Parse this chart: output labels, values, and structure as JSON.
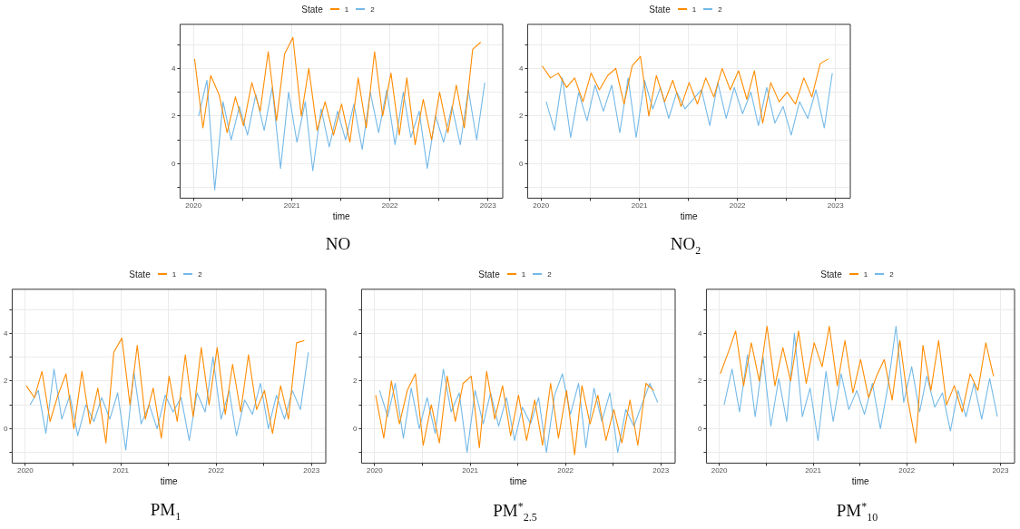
{
  "chart_data": [
    {
      "type": "line",
      "title": "NO",
      "xlabel": "time",
      "legend_title": "State",
      "legend": "top",
      "grid": true,
      "xlim": [
        "2019-11-12",
        "2023-02-25"
      ],
      "xticks": [
        {
          "value": "2020-01-01",
          "label": "2020"
        },
        {
          "value": "2020-07-01",
          "label": null
        },
        {
          "value": "2021-01-01",
          "label": "2021"
        },
        {
          "value": "2021-07-01",
          "label": null
        },
        {
          "value": "2022-01-01",
          "label": "2022"
        },
        {
          "value": "2022-07-01",
          "label": null
        },
        {
          "value": "2023-01-01",
          "label": "2023"
        }
      ],
      "ylim": [
        -1.45,
        5.85
      ],
      "yticks": [
        {
          "value": -1,
          "label": null
        },
        0,
        {
          "value": 1,
          "label": null
        },
        2,
        {
          "value": 3,
          "label": null
        },
        4,
        {
          "value": 5,
          "label": null
        }
      ],
      "series": [
        {
          "name": "1",
          "color": "#ff8c00",
          "x": [
            "2020-01-05",
            "2020-02-05",
            "2020-03-05",
            "2020-04-05",
            "2020-05-05",
            "2020-06-05",
            "2020-07-05",
            "2020-08-05",
            "2020-09-05",
            "2020-10-05",
            "2020-11-05",
            "2020-12-05",
            "2021-01-05",
            "2021-02-05",
            "2021-03-05",
            "2021-04-05",
            "2021-05-05",
            "2021-06-05",
            "2021-07-05",
            "2021-08-05",
            "2021-09-05",
            "2021-10-05",
            "2021-11-05",
            "2021-12-05",
            "2022-01-05",
            "2022-02-05",
            "2022-03-05",
            "2022-04-05",
            "2022-05-05",
            "2022-06-05",
            "2022-07-05",
            "2022-08-05",
            "2022-09-05",
            "2022-10-05",
            "2022-11-05",
            "2022-12-05"
          ],
          "values": [
            4.4,
            1.5,
            3.7,
            2.9,
            1.3,
            2.8,
            1.6,
            3.4,
            2.2,
            4.7,
            1.8,
            4.6,
            5.3,
            2.0,
            4.0,
            1.4,
            2.6,
            1.2,
            2.5,
            0.9,
            3.6,
            1.5,
            4.7,
            2.0,
            3.8,
            1.2,
            3.6,
            0.8,
            2.7,
            1.0,
            3.0,
            1.3,
            3.3,
            1.5,
            4.8,
            5.1
          ]
        },
        {
          "name": "2",
          "color": "#74b9e8",
          "x": [
            "2020-01-20",
            "2020-02-20",
            "2020-03-20",
            "2020-04-20",
            "2020-05-20",
            "2020-06-20",
            "2020-07-20",
            "2020-08-20",
            "2020-09-20",
            "2020-10-20",
            "2020-11-20",
            "2020-12-20",
            "2021-01-20",
            "2021-02-20",
            "2021-03-20",
            "2021-04-20",
            "2021-05-20",
            "2021-06-20",
            "2021-07-20",
            "2021-08-20",
            "2021-09-20",
            "2021-10-20",
            "2021-11-20",
            "2021-12-20",
            "2022-01-20",
            "2022-02-20",
            "2022-03-20",
            "2022-04-20",
            "2022-05-20",
            "2022-06-20",
            "2022-07-20",
            "2022-08-20",
            "2022-09-20",
            "2022-10-20",
            "2022-11-20",
            "2022-12-20"
          ],
          "values": [
            2.0,
            3.5,
            -1.1,
            2.6,
            1.0,
            2.4,
            1.2,
            2.9,
            1.4,
            3.2,
            -0.2,
            3.0,
            0.9,
            2.6,
            -0.3,
            2.3,
            0.7,
            2.2,
            1.0,
            2.5,
            0.6,
            3.0,
            1.3,
            3.1,
            0.8,
            3.0,
            1.1,
            2.2,
            -0.2,
            2.0,
            0.9,
            2.4,
            0.8,
            3.1,
            1.0,
            3.4
          ]
        }
      ]
    },
    {
      "type": "line",
      "title": "NO$_{2}$",
      "xlabel": "time",
      "legend_title": "State",
      "legend": "top",
      "grid": true,
      "xlim": [
        "2019-11-12",
        "2023-02-25"
      ],
      "xticks": [
        {
          "value": "2020-01-01",
          "label": "2020"
        },
        {
          "value": "2020-07-01",
          "label": null
        },
        {
          "value": "2021-01-01",
          "label": "2021"
        },
        {
          "value": "2021-07-01",
          "label": null
        },
        {
          "value": "2022-01-01",
          "label": "2022"
        },
        {
          "value": "2022-07-01",
          "label": null
        },
        {
          "value": "2023-01-01",
          "label": "2023"
        }
      ],
      "ylim": [
        -1.45,
        5.85
      ],
      "yticks": [
        {
          "value": -1,
          "label": null
        },
        0,
        {
          "value": 1,
          "label": null
        },
        2,
        {
          "value": 3,
          "label": null
        },
        4,
        {
          "value": 5,
          "label": null
        }
      ],
      "series": [
        {
          "name": "1",
          "color": "#ff8c00",
          "x": [
            "2020-01-05",
            "2020-02-05",
            "2020-03-05",
            "2020-04-05",
            "2020-05-05",
            "2020-06-05",
            "2020-07-05",
            "2020-08-05",
            "2020-09-05",
            "2020-10-05",
            "2020-11-05",
            "2020-12-05",
            "2021-01-05",
            "2021-02-05",
            "2021-03-05",
            "2021-04-05",
            "2021-05-05",
            "2021-06-05",
            "2021-07-05",
            "2021-08-05",
            "2021-09-05",
            "2021-10-05",
            "2021-11-05",
            "2021-12-05",
            "2022-01-05",
            "2022-02-05",
            "2022-03-05",
            "2022-04-05",
            "2022-05-05",
            "2022-06-05",
            "2022-07-05",
            "2022-08-05",
            "2022-09-05",
            "2022-10-05",
            "2022-11-05",
            "2022-12-05"
          ],
          "values": [
            4.1,
            3.6,
            3.8,
            3.2,
            3.6,
            2.6,
            3.8,
            3.1,
            3.7,
            4.0,
            2.5,
            4.1,
            4.5,
            2.0,
            3.7,
            2.6,
            3.5,
            2.4,
            3.4,
            2.5,
            3.6,
            2.8,
            4.0,
            3.1,
            3.9,
            2.7,
            3.9,
            1.7,
            3.4,
            2.6,
            3.0,
            2.5,
            3.6,
            2.8,
            4.2,
            4.4
          ]
        },
        {
          "name": "2",
          "color": "#74b9e8",
          "x": [
            "2020-01-20",
            "2020-02-20",
            "2020-03-20",
            "2020-04-20",
            "2020-05-20",
            "2020-06-20",
            "2020-07-20",
            "2020-08-20",
            "2020-09-20",
            "2020-10-20",
            "2020-11-20",
            "2020-12-20",
            "2021-01-20",
            "2021-02-20",
            "2021-03-20",
            "2021-04-20",
            "2021-05-20",
            "2021-06-20",
            "2021-07-20",
            "2021-08-20",
            "2021-09-20",
            "2021-10-20",
            "2021-11-20",
            "2021-12-20",
            "2022-01-20",
            "2022-02-20",
            "2022-03-20",
            "2022-04-20",
            "2022-05-20",
            "2022-06-20",
            "2022-07-20",
            "2022-08-20",
            "2022-09-20",
            "2022-10-20",
            "2022-11-20",
            "2022-12-20"
          ],
          "values": [
            2.6,
            1.4,
            3.6,
            1.1,
            3.0,
            1.8,
            3.3,
            2.2,
            3.3,
            1.3,
            3.6,
            1.1,
            3.5,
            2.3,
            3.2,
            1.9,
            3.0,
            2.3,
            2.7,
            3.1,
            1.6,
            3.4,
            1.9,
            3.2,
            2.1,
            3.0,
            1.6,
            3.2,
            1.7,
            2.4,
            1.2,
            2.6,
            1.9,
            3.1,
            1.5,
            3.8
          ]
        }
      ]
    },
    {
      "type": "line",
      "title": "PM$_{1}$",
      "xlabel": "time",
      "legend_title": "State",
      "legend": "top",
      "grid": true,
      "xlim": [
        "2019-11-12",
        "2023-02-25"
      ],
      "xticks": [
        {
          "value": "2020-01-01",
          "label": "2020"
        },
        {
          "value": "2020-07-01",
          "label": null
        },
        {
          "value": "2021-01-01",
          "label": "2021"
        },
        {
          "value": "2021-07-01",
          "label": null
        },
        {
          "value": "2022-01-01",
          "label": "2022"
        },
        {
          "value": "2022-07-01",
          "label": null
        },
        {
          "value": "2023-01-01",
          "label": "2023"
        }
      ],
      "ylim": [
        -1.45,
        5.85
      ],
      "yticks": [
        {
          "value": -1,
          "label": null
        },
        0,
        {
          "value": 1,
          "label": null
        },
        2,
        {
          "value": 3,
          "label": null
        },
        4,
        {
          "value": 5,
          "label": null
        }
      ],
      "series": [
        {
          "name": "1",
          "color": "#ff8c00",
          "x": [
            "2020-01-05",
            "2020-02-05",
            "2020-03-05",
            "2020-04-05",
            "2020-05-05",
            "2020-06-05",
            "2020-07-05",
            "2020-08-05",
            "2020-09-05",
            "2020-10-05",
            "2020-11-05",
            "2020-12-05",
            "2021-01-05",
            "2021-02-05",
            "2021-03-05",
            "2021-04-05",
            "2021-05-05",
            "2021-06-05",
            "2021-07-05",
            "2021-08-05",
            "2021-09-05",
            "2021-10-05",
            "2021-11-05",
            "2021-12-05",
            "2022-01-05",
            "2022-02-05",
            "2022-03-05",
            "2022-04-05",
            "2022-05-05",
            "2022-06-05",
            "2022-07-05",
            "2022-08-05",
            "2022-09-05",
            "2022-10-05",
            "2022-11-05",
            "2022-12-05"
          ],
          "values": [
            1.8,
            1.3,
            2.4,
            0.3,
            1.4,
            2.3,
            0.0,
            2.4,
            0.2,
            1.7,
            -0.6,
            3.2,
            3.8,
            1.0,
            3.5,
            0.4,
            1.7,
            -0.4,
            2.2,
            0.3,
            3.1,
            0.5,
            3.4,
            1.0,
            3.4,
            0.6,
            2.7,
            0.7,
            3.1,
            0.8,
            1.6,
            -0.2,
            1.8,
            0.4,
            3.6,
            3.7
          ]
        },
        {
          "name": "2",
          "color": "#74b9e8",
          "x": [
            "2020-01-20",
            "2020-02-20",
            "2020-03-20",
            "2020-04-20",
            "2020-05-20",
            "2020-06-20",
            "2020-07-20",
            "2020-08-20",
            "2020-09-20",
            "2020-10-20",
            "2020-11-20",
            "2020-12-20",
            "2021-01-20",
            "2021-02-20",
            "2021-03-20",
            "2021-04-20",
            "2021-05-20",
            "2021-06-20",
            "2021-07-20",
            "2021-08-20",
            "2021-09-20",
            "2021-10-20",
            "2021-11-20",
            "2021-12-20",
            "2022-01-20",
            "2022-02-20",
            "2022-03-20",
            "2022-04-20",
            "2022-05-20",
            "2022-06-20",
            "2022-07-20",
            "2022-08-20",
            "2022-09-20",
            "2022-10-20",
            "2022-11-20",
            "2022-12-20"
          ],
          "values": [
            1.0,
            1.6,
            -0.2,
            2.5,
            0.4,
            1.4,
            -0.3,
            1.0,
            0.3,
            1.3,
            0.4,
            1.5,
            -0.9,
            2.4,
            0.2,
            1.0,
            0.0,
            1.4,
            0.7,
            1.3,
            -0.5,
            1.5,
            0.7,
            3.0,
            0.4,
            1.6,
            -0.3,
            1.2,
            0.6,
            1.9,
            0.0,
            1.4,
            0.4,
            1.6,
            0.8,
            3.2
          ]
        }
      ]
    },
    {
      "type": "line",
      "title": "PM$^{*}$$_{2.5}$",
      "xlabel": "time",
      "legend_title": "State",
      "legend": "top",
      "grid": true,
      "xlim": [
        "2019-11-12",
        "2023-02-25"
      ],
      "xticks": [
        {
          "value": "2020-01-01",
          "label": "2020"
        },
        {
          "value": "2020-07-01",
          "label": null
        },
        {
          "value": "2021-01-01",
          "label": "2021"
        },
        {
          "value": "2021-07-01",
          "label": null
        },
        {
          "value": "2022-01-01",
          "label": "2022"
        },
        {
          "value": "2022-07-01",
          "label": null
        },
        {
          "value": "2023-01-01",
          "label": "2023"
        }
      ],
      "ylim": [
        -1.45,
        5.85
      ],
      "yticks": [
        {
          "value": -1,
          "label": null
        },
        0,
        {
          "value": 1,
          "label": null
        },
        2,
        {
          "value": 3,
          "label": null
        },
        4,
        {
          "value": 5,
          "label": null
        }
      ],
      "series": [
        {
          "name": "1",
          "color": "#ff8c00",
          "x": [
            "2020-01-05",
            "2020-02-05",
            "2020-03-05",
            "2020-04-05",
            "2020-05-05",
            "2020-06-05",
            "2020-07-05",
            "2020-08-05",
            "2020-09-05",
            "2020-10-05",
            "2020-11-05",
            "2020-12-05",
            "2021-01-05",
            "2021-02-05",
            "2021-03-05",
            "2021-04-05",
            "2021-05-05",
            "2021-06-05",
            "2021-07-05",
            "2021-08-05",
            "2021-09-05",
            "2021-10-05",
            "2021-11-05",
            "2021-12-05",
            "2022-01-05",
            "2022-02-05",
            "2022-03-05",
            "2022-04-05",
            "2022-05-05",
            "2022-06-05",
            "2022-07-05",
            "2022-08-05",
            "2022-09-05",
            "2022-10-05",
            "2022-11-05",
            "2022-12-05"
          ],
          "values": [
            1.4,
            -0.4,
            2.0,
            0.2,
            1.6,
            2.3,
            -0.7,
            1.0,
            -0.6,
            2.2,
            0.3,
            1.9,
            2.2,
            -0.8,
            2.4,
            0.4,
            1.8,
            -0.3,
            1.4,
            -0.5,
            1.2,
            -0.7,
            1.9,
            -0.4,
            1.6,
            -1.1,
            1.8,
            0.2,
            1.4,
            -0.5,
            0.8,
            -0.6,
            1.2,
            -0.7,
            1.9,
            1.6
          ]
        },
        {
          "name": "2",
          "color": "#74b9e8",
          "x": [
            "2020-01-20",
            "2020-02-20",
            "2020-03-20",
            "2020-04-20",
            "2020-05-20",
            "2020-06-20",
            "2020-07-20",
            "2020-08-20",
            "2020-09-20",
            "2020-10-20",
            "2020-11-20",
            "2020-12-20",
            "2021-01-20",
            "2021-02-20",
            "2021-03-20",
            "2021-04-20",
            "2021-05-20",
            "2021-06-20",
            "2021-07-20",
            "2021-08-20",
            "2021-09-20",
            "2021-10-20",
            "2021-11-20",
            "2021-12-20",
            "2022-01-20",
            "2022-02-20",
            "2022-03-20",
            "2022-04-20",
            "2022-05-20",
            "2022-06-20",
            "2022-07-20",
            "2022-08-20",
            "2022-09-20",
            "2022-10-20",
            "2022-11-20",
            "2022-12-20"
          ],
          "values": [
            1.6,
            0.5,
            1.9,
            -0.4,
            1.7,
            0.0,
            1.3,
            -0.2,
            2.5,
            0.7,
            1.5,
            -1.0,
            1.6,
            0.2,
            1.5,
            0.1,
            1.3,
            -0.5,
            0.9,
            0.2,
            1.3,
            -1.0,
            1.4,
            2.3,
            0.6,
            1.9,
            -0.8,
            1.7,
            0.3,
            1.5,
            -1.0,
            0.8,
            0.1,
            1.0,
            1.9,
            1.1
          ]
        }
      ]
    },
    {
      "type": "line",
      "title": "PM$^{*}$$_{10}$",
      "xlabel": "time",
      "legend_title": "State",
      "legend": "top",
      "grid": true,
      "xlim": [
        "2019-11-12",
        "2023-02-25"
      ],
      "xticks": [
        {
          "value": "2020-01-01",
          "label": "2020"
        },
        {
          "value": "2020-07-01",
          "label": null
        },
        {
          "value": "2021-01-01",
          "label": "2021"
        },
        {
          "value": "2021-07-01",
          "label": null
        },
        {
          "value": "2022-01-01",
          "label": "2022"
        },
        {
          "value": "2022-07-01",
          "label": null
        },
        {
          "value": "2023-01-01",
          "label": "2023"
        }
      ],
      "ylim": [
        -1.45,
        5.85
      ],
      "yticks": [
        {
          "value": -1,
          "label": null
        },
        0,
        {
          "value": 1,
          "label": null
        },
        2,
        {
          "value": 3,
          "label": null
        },
        4,
        {
          "value": 5,
          "label": null
        }
      ],
      "series": [
        {
          "name": "1",
          "color": "#ff8c00",
          "x": [
            "2020-01-05",
            "2020-02-05",
            "2020-03-05",
            "2020-04-05",
            "2020-05-05",
            "2020-06-05",
            "2020-07-05",
            "2020-08-05",
            "2020-09-05",
            "2020-10-05",
            "2020-11-05",
            "2020-12-05",
            "2021-01-05",
            "2021-02-05",
            "2021-03-05",
            "2021-04-05",
            "2021-05-05",
            "2021-06-05",
            "2021-07-05",
            "2021-08-05",
            "2021-09-05",
            "2021-10-05",
            "2021-11-05",
            "2021-12-05",
            "2022-01-05",
            "2022-02-05",
            "2022-03-05",
            "2022-04-05",
            "2022-05-05",
            "2022-06-05",
            "2022-07-05",
            "2022-08-05",
            "2022-09-05",
            "2022-10-05",
            "2022-11-05",
            "2022-12-05"
          ],
          "values": [
            2.3,
            3.2,
            4.1,
            1.8,
            3.6,
            2.0,
            4.3,
            1.8,
            3.4,
            2.0,
            4.1,
            1.9,
            3.6,
            2.6,
            4.3,
            1.8,
            3.7,
            1.5,
            2.9,
            1.3,
            2.2,
            2.9,
            1.2,
            3.7,
            1.2,
            -0.6,
            3.5,
            1.6,
            3.7,
            1.0,
            1.8,
            0.7,
            2.3,
            1.6,
            3.6,
            2.2
          ]
        },
        {
          "name": "2",
          "color": "#74b9e8",
          "x": [
            "2020-01-20",
            "2020-02-20",
            "2020-03-20",
            "2020-04-20",
            "2020-05-20",
            "2020-06-20",
            "2020-07-20",
            "2020-08-20",
            "2020-09-20",
            "2020-10-20",
            "2020-11-20",
            "2020-12-20",
            "2021-01-20",
            "2021-02-20",
            "2021-03-20",
            "2021-04-20",
            "2021-05-20",
            "2021-06-20",
            "2021-07-20",
            "2021-08-20",
            "2021-09-20",
            "2021-10-20",
            "2021-11-20",
            "2021-12-20",
            "2022-01-20",
            "2022-02-20",
            "2022-03-20",
            "2022-04-20",
            "2022-05-20",
            "2022-06-20",
            "2022-07-20",
            "2022-08-20",
            "2022-09-20",
            "2022-10-20",
            "2022-11-20",
            "2022-12-20"
          ],
          "values": [
            1.0,
            2.5,
            0.7,
            3.1,
            0.5,
            3.0,
            0.1,
            2.1,
            0.3,
            4.0,
            0.5,
            1.7,
            -0.5,
            2.4,
            0.3,
            2.3,
            0.8,
            1.6,
            0.6,
            1.9,
            0.0,
            1.8,
            4.3,
            1.1,
            2.6,
            0.7,
            2.2,
            0.9,
            1.5,
            -0.1,
            1.6,
            0.5,
            1.9,
            0.4,
            2.1,
            0.5
          ]
        }
      ]
    }
  ]
}
